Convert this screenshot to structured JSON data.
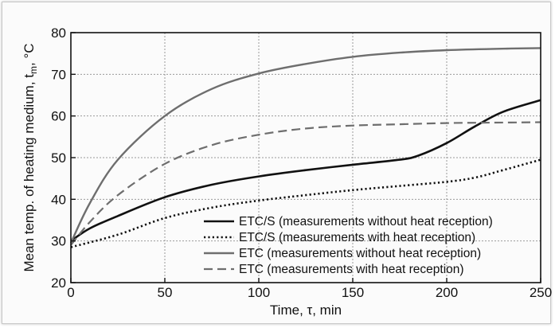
{
  "chart_data": {
    "type": "line",
    "title": "",
    "xlabel": "Time, τ, min",
    "ylabel": "Mean temp. of heating medium, t",
    "ylabel_sub": "m",
    "ylabel_unit": ", °C",
    "xlim": [
      0,
      250
    ],
    "ylim": [
      20,
      80
    ],
    "xticks": [
      0,
      50,
      100,
      150,
      200,
      250
    ],
    "yticks": [
      20,
      30,
      40,
      50,
      60,
      70,
      80
    ],
    "grid": true,
    "legend_position": "bottom-right",
    "series": [
      {
        "name": "ETC/S (measurements without heat reception)",
        "color": "#111111",
        "style": "solid",
        "width": 2.6,
        "x": [
          0,
          10,
          25,
          50,
          75,
          100,
          125,
          150,
          175,
          185,
          200,
          215,
          230,
          250
        ],
        "y": [
          30,
          33,
          36,
          40.5,
          43.5,
          45.5,
          47,
          48.3,
          49.5,
          50.5,
          53.5,
          57.5,
          61,
          63.8
        ]
      },
      {
        "name": "ETC/S (measurements with heat reception)",
        "color": "#111111",
        "style": "dotted",
        "width": 2.6,
        "x": [
          0,
          25,
          50,
          75,
          100,
          125,
          150,
          175,
          200,
          215,
          230,
          250
        ],
        "y": [
          28.5,
          31.5,
          35.5,
          38,
          39.7,
          41,
          42.2,
          43.2,
          44.2,
          45.2,
          47,
          49.5
        ]
      },
      {
        "name": "ETC (measurements without heat reception)",
        "color": "#6e6e6e",
        "style": "solid",
        "width": 2.4,
        "x": [
          0,
          10,
          25,
          50,
          75,
          100,
          125,
          150,
          175,
          200,
          225,
          250
        ],
        "y": [
          29.5,
          39,
          49.5,
          60,
          66.5,
          70.2,
          72.5,
          74.2,
          75.2,
          75.8,
          76.1,
          76.3
        ]
      },
      {
        "name": "ETC (measurements with heat reception)",
        "color": "#6e6e6e",
        "style": "dashed",
        "width": 2.2,
        "x": [
          0,
          10,
          25,
          50,
          75,
          100,
          125,
          150,
          175,
          200,
          225,
          250
        ],
        "y": [
          29,
          34.5,
          41,
          48.5,
          53,
          55.5,
          57,
          57.7,
          58,
          58.3,
          58.4,
          58.5
        ]
      }
    ]
  }
}
